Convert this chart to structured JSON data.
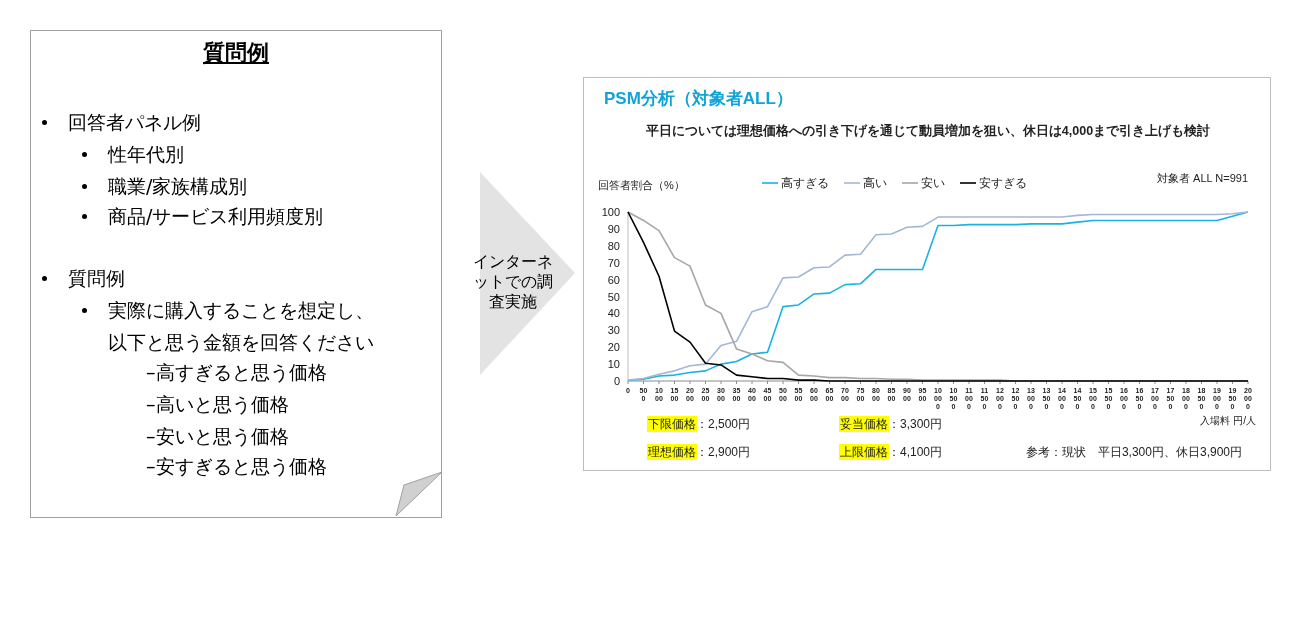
{
  "chart_data": [
    {
      "type": "other",
      "title": "質問例",
      "annotations": [
        "回答者パネル例",
        "性年代別",
        "職業/家族構成別",
        "商品/サービス利用頻度別",
        "質問例",
        "実際に購入することを想定し、以下と思う金額を回答ください",
        "–高すぎると思う価格",
        "–高いと思う価格",
        "–安いと思う価格",
        "–安すぎると思う価格",
        "インターネットでの調査実施"
      ]
    },
    {
      "type": "line",
      "title": "PSM分析（対象者ALL）",
      "subtitle": "平日については理想価格への引き下げを通じて動員増加を狙い、休日は4,000まで引き上げも検討",
      "ylabel": "回答者割合（%）",
      "xlabel": "入場料 円/人",
      "categories": [
        "0",
        "500",
        "1000",
        "1500",
        "2000",
        "2500",
        "3000",
        "3500",
        "4000",
        "4500",
        "5000",
        "5500",
        "6000",
        "6500",
        "7000",
        "7500",
        "8000",
        "8500",
        "9000",
        "9500",
        "10000",
        "10500",
        "11000",
        "11500",
        "12000",
        "12500",
        "13000",
        "13500",
        "14000",
        "14500",
        "15000",
        "15500",
        "16000",
        "16500",
        "17000",
        "17500",
        "18000",
        "18500",
        "19000",
        "19500",
        "20000"
      ],
      "ylim": [
        0,
        100
      ],
      "yticks": [
        0,
        10,
        20,
        30,
        40,
        50,
        60,
        70,
        80,
        90,
        100
      ],
      "legend": "top",
      "series": [
        {
          "name": "高すぎる",
          "color": "#1ab2e0",
          "values": [
            0.5,
            1,
            3,
            3.5,
            5,
            6,
            10,
            11.5,
            16,
            17,
            44,
            45,
            51.5,
            52,
            57,
            57.5,
            66,
            66,
            66,
            66,
            92,
            92,
            92.5,
            92.5,
            92.5,
            92.5,
            93,
            93,
            93,
            94,
            95,
            95,
            95,
            95,
            95,
            95,
            95,
            95,
            95,
            97.5,
            100
          ]
        },
        {
          "name": "高い",
          "color": "#a3b7d6",
          "values": [
            0.5,
            1.5,
            4,
            6,
            9,
            10,
            21,
            23.5,
            41,
            44,
            61,
            61.5,
            67,
            67.5,
            74.5,
            75,
            86.5,
            87,
            91,
            91.5,
            97,
            97,
            97,
            97,
            97,
            97,
            97,
            97,
            97,
            98,
            98.5,
            98.5,
            98.5,
            98.5,
            98.5,
            98.5,
            98.5,
            98.5,
            98.5,
            99,
            100
          ]
        },
        {
          "name": "安い",
          "color": "#a6a6a6",
          "values": [
            100,
            95,
            89,
            73,
            68,
            45,
            40,
            19,
            16,
            12,
            11,
            3.5,
            3,
            2,
            2,
            1.5,
            1.5,
            1,
            1,
            0.5,
            0.5,
            0.5,
            0.5,
            0.5,
            0.5,
            0,
            0,
            0,
            0,
            0,
            0,
            0,
            0,
            0,
            0,
            0,
            0,
            0,
            0,
            0,
            0
          ]
        },
        {
          "name": "安すぎる",
          "color": "#000000",
          "values": [
            100,
            82,
            62,
            29.5,
            23,
            10.5,
            9.5,
            3.5,
            2.5,
            1.5,
            1.5,
            0.5,
            0.5,
            0,
            0,
            0,
            0,
            0,
            0,
            0,
            0,
            0,
            0,
            0,
            0,
            0,
            0,
            0,
            0,
            0,
            0,
            0,
            0,
            0,
            0,
            0,
            0,
            0,
            0,
            0,
            0
          ]
        }
      ],
      "annotations": [
        "対象者 ALL N=991",
        "下限価格：2,500円",
        "妥当価格：3,300円",
        "理想価格：2,900円",
        "上限価格：4,100円",
        "参考：現状　平日3,300円、休日3,900円"
      ]
    }
  ]
}
